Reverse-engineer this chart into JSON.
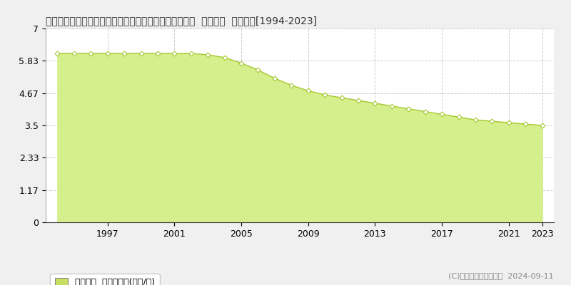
{
  "title": "山形県西村山郡大江町大字左沢字愛宕下１１２９番２外  地価公示  地価推移[1994-2023]",
  "years": [
    1994,
    1995,
    1996,
    1997,
    1998,
    1999,
    2000,
    2001,
    2002,
    2003,
    2004,
    2005,
    2006,
    2007,
    2008,
    2009,
    2010,
    2011,
    2012,
    2013,
    2014,
    2015,
    2016,
    2017,
    2018,
    2019,
    2020,
    2021,
    2022,
    2023
  ],
  "values": [
    6.1,
    6.1,
    6.1,
    6.1,
    6.1,
    6.1,
    6.1,
    6.1,
    6.1,
    6.05,
    5.95,
    5.75,
    5.5,
    5.2,
    4.95,
    4.75,
    4.6,
    4.5,
    4.4,
    4.3,
    4.2,
    4.1,
    4.0,
    3.9,
    3.8,
    3.7,
    3.65,
    3.6,
    3.55,
    3.5
  ],
  "fill_color": "#d4ef8b",
  "line_color": "#a8c832",
  "marker_color": "#ffffff",
  "marker_edge_color": "#a8c832",
  "background_color": "#f0f0f0",
  "plot_bg_color": "#ffffff",
  "grid_color": "#cccccc",
  "yticks": [
    0,
    1.17,
    2.33,
    3.5,
    4.67,
    5.83,
    7
  ],
  "ylim": [
    0,
    7
  ],
  "xticks": [
    1997,
    2001,
    2005,
    2009,
    2013,
    2017,
    2021,
    2023
  ],
  "xlim": [
    1993.3,
    2023.7
  ],
  "legend_label": "地価公示  平均坪単価(万円/坪)",
  "legend_color": "#c8e060",
  "watermark": "(C)土地価格ドットコム  2024-09-11",
  "title_fontsize": 10,
  "tick_fontsize": 9,
  "legend_fontsize": 9
}
